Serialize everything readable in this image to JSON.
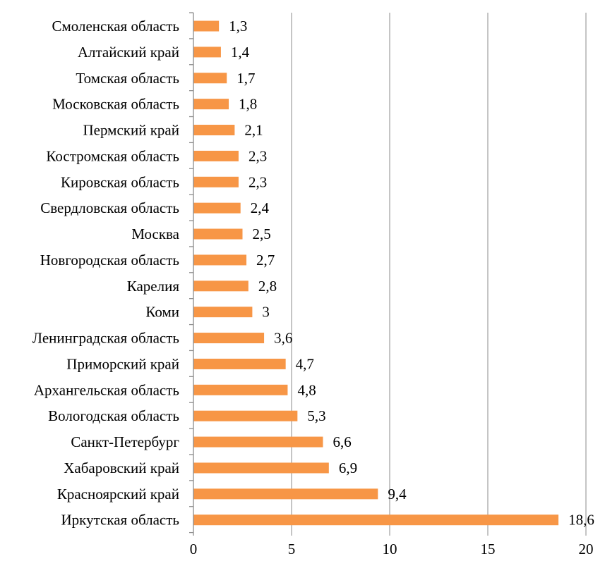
{
  "chart_data": {
    "type": "bar",
    "orientation": "horizontal",
    "categories": [
      "Смоленская область",
      "Алтайский край",
      "Томская область",
      "Московская область",
      "Пермский край",
      "Костромская область",
      "Кировская область",
      "Свердловская область",
      "Москва",
      "Новгородская область",
      "Карелия",
      "Коми",
      "Ленинградская область",
      "Приморский край",
      "Архангельская область",
      "Вологодская область",
      "Санкт-Петербург",
      "Хабаровский край",
      "Красноярский край",
      "Иркутская область"
    ],
    "values": [
      1.3,
      1.4,
      1.7,
      1.8,
      2.1,
      2.3,
      2.3,
      2.4,
      2.5,
      2.7,
      2.8,
      3,
      3.6,
      4.7,
      4.8,
      5.3,
      6.6,
      6.9,
      9.4,
      18.6
    ],
    "value_labels": [
      "1,3",
      "1,4",
      "1,7",
      "1,8",
      "2,1",
      "2,3",
      "2,3",
      "2,4",
      "2,5",
      "2,7",
      "2,8",
      "3",
      "3,6",
      "4,7",
      "4,8",
      "5,3",
      "6,6",
      "6,9",
      "9,4",
      "18,6"
    ],
    "xlim": [
      0,
      20
    ],
    "xticks": [
      0,
      5,
      10,
      15,
      20
    ],
    "xtick_labels": [
      "0",
      "5",
      "10",
      "15",
      "20"
    ],
    "title": "",
    "xlabel": "",
    "ylabel": "",
    "grid": "vertical",
    "legend": "none",
    "colors": {
      "bar": "#F79646",
      "grid": "#A6A6A6",
      "axis": "#8C8C8C",
      "text": "#000000"
    }
  }
}
